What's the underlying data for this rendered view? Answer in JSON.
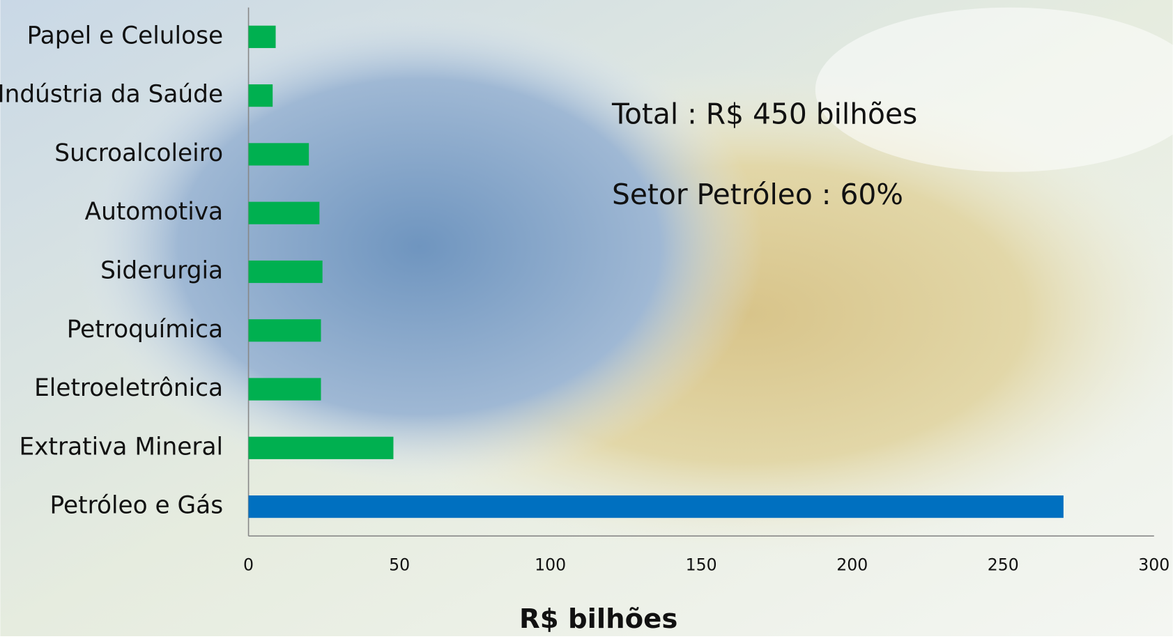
{
  "chart_data": {
    "type": "bar",
    "orientation": "horizontal",
    "categories": [
      "Papel e Celulose",
      "Indústria da Saúde",
      "Sucroalcoleiro",
      "Automotiva",
      "Siderurgia",
      "Petroquímica",
      "Eletroeletrônica",
      "Extrativa Mineral",
      "Petróleo e Gás"
    ],
    "values": [
      9,
      8,
      20,
      23.5,
      24.5,
      24,
      24,
      48,
      270
    ],
    "colors": [
      "#00b050",
      "#00b050",
      "#00b050",
      "#00b050",
      "#00b050",
      "#00b050",
      "#00b050",
      "#00b050",
      "#0070c0"
    ],
    "xlim": [
      0,
      300
    ],
    "xticks": [
      0,
      50,
      100,
      150,
      200,
      250,
      300
    ],
    "xlabel": "R$ bilhões",
    "annotations": [
      "Total : R$ 450 bilhões",
      "Setor Petróleo :  60%"
    ],
    "grid": false
  }
}
